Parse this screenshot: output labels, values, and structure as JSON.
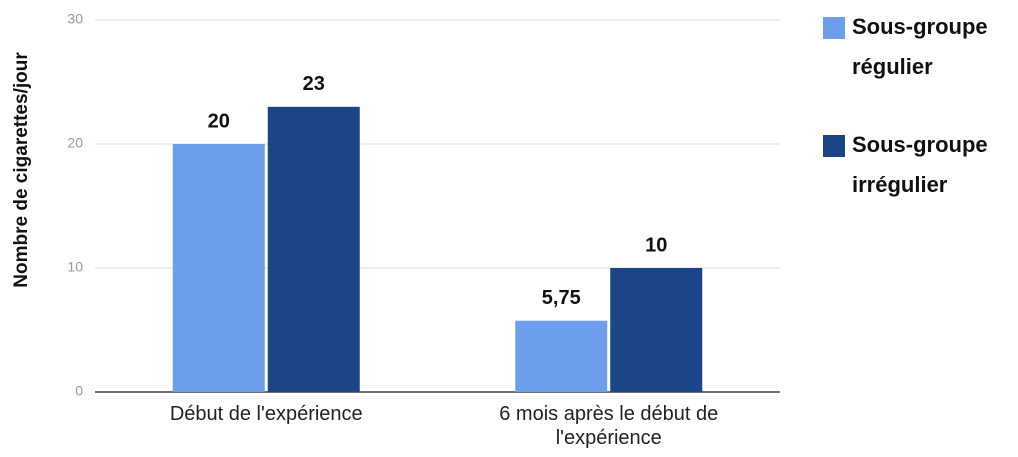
{
  "chart_data": {
    "type": "bar",
    "y_label": "Nombre de cigarettes/jour",
    "categories": [
      "Début de l'expérience",
      "6 mois après le début de l'expérience"
    ],
    "series": [
      {
        "name": "Sous-groupe régulier",
        "color": "#6d9eeb",
        "values": [
          20,
          5.75
        ],
        "value_labels": [
          "20",
          "5,75"
        ]
      },
      {
        "name": "Sous-groupe irrégulier",
        "color": "#1c4587",
        "values": [
          23,
          10
        ]
      }
    ],
    "ylim": [
      0,
      30
    ],
    "yticks": [
      0,
      10,
      20,
      30
    ],
    "grid": true,
    "legend": "right"
  }
}
